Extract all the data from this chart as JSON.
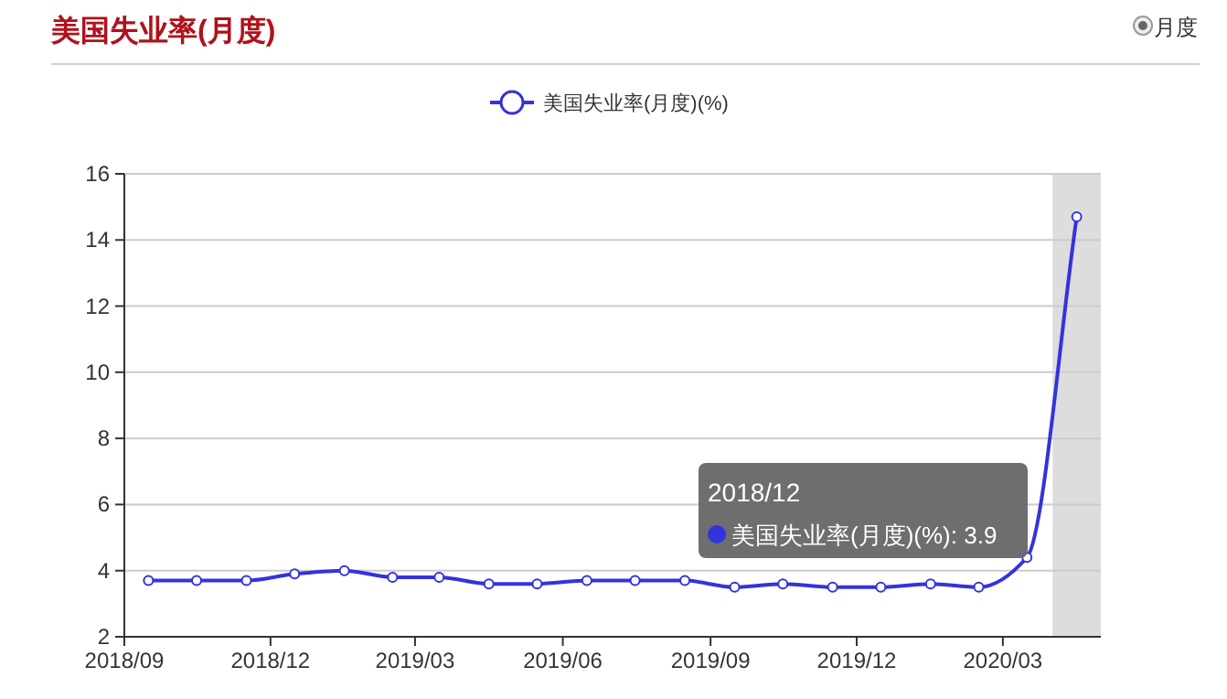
{
  "chart_data": {
    "type": "line",
    "title": "美国失业率(月度)",
    "x": [
      "2018-09-16",
      "2018-10-16",
      "2018-11-16",
      "2018-12-16",
      "2019-01-16",
      "2019-02-15",
      "2019-03-16",
      "2019-04-16",
      "2019-05-16",
      "2019-06-16",
      "2019-07-16",
      "2019-08-16",
      "2019-09-16",
      "2019-10-16",
      "2019-11-16",
      "2019-12-16",
      "2020-01-16",
      "2020-02-15",
      "2020-03-16",
      "2020-04-16"
    ],
    "series": [
      {
        "name": "美国失业率(月度)(%)",
        "color": "#3333dd",
        "values": [
          3.7,
          3.7,
          3.7,
          3.9,
          4.0,
          3.8,
          3.8,
          3.6,
          3.6,
          3.7,
          3.7,
          3.7,
          3.5,
          3.6,
          3.5,
          3.5,
          3.6,
          3.5,
          4.4,
          14.7
        ]
      }
    ],
    "xlim": [
      "2018-09-01",
      "2020-05-01"
    ],
    "xticks": [
      {
        "value": "2018-09-01",
        "label": "2018/09"
      },
      {
        "value": "2018-12-01",
        "label": "2018/12"
      },
      {
        "value": "2019-03-01",
        "label": "2019/03"
      },
      {
        "value": "2019-06-01",
        "label": "2019/06"
      },
      {
        "value": "2019-09-01",
        "label": "2019/09"
      },
      {
        "value": "2019-12-01",
        "label": "2019/12"
      },
      {
        "value": "2020-03-01",
        "label": "2020/03"
      }
    ],
    "ylim": [
      2,
      16
    ],
    "yticks": [
      2,
      4,
      6,
      8,
      10,
      12,
      14,
      16
    ],
    "grid": "y",
    "legend": "top",
    "marker": "circle",
    "line_style": "solid",
    "bands": [
      {
        "axis": "x",
        "from": "2020-04-01",
        "to": "2020-05-01",
        "color": "#dddddd"
      }
    ],
    "annotations": [
      "月度",
      "2018/12",
      "美国失业率(月度)(%): 3.9"
    ]
  }
}
